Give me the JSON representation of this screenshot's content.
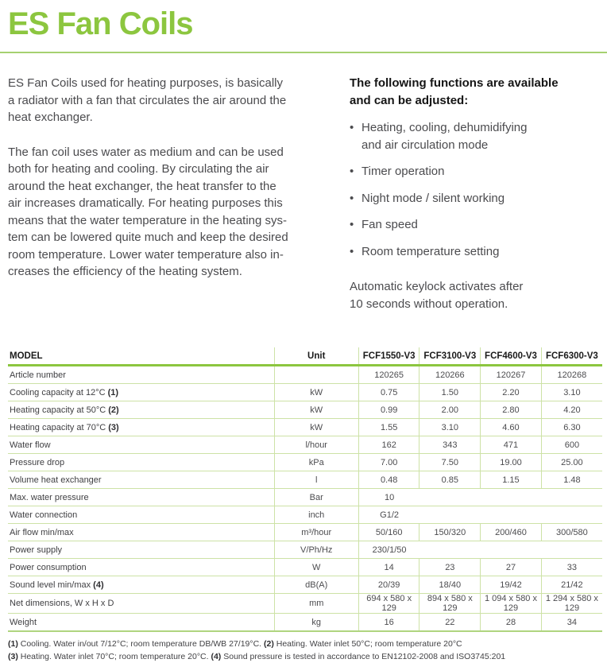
{
  "page": {
    "title": "ES Fan Coils",
    "intro_paragraphs": [
      "ES Fan Coils used for heating purposes, is basically\na radiator with a fan that circulates the air around the\nheat exchanger.",
      "The fan coil uses water as medium and can be used\nboth for heating and cooling. By circulating the air\naround the heat exchanger, the heat transfer to the\nair increases dramatically. For heating purposes this\nmeans that the water temperature in the heating sys-\ntem can be lowered quite much and keep the desired\nroom temperature. Lower water temperature also in-\ncreases the efficiency of the heating system."
    ],
    "functions": {
      "heading": "The following functions are available\nand can be adjusted:",
      "items": [
        "Heating, cooling, dehumidifying\nand air circulation mode",
        "Timer operation",
        "Night mode / silent working",
        "Fan speed",
        "Room temperature setting"
      ],
      "note": "Automatic keylock activates after\n10 seconds without operation."
    },
    "colors": {
      "accent_green": "#8CC63F",
      "table_line_green": "#CDE2A6",
      "body_text": "#4B4B4E"
    }
  },
  "table": {
    "columns": [
      "MODEL",
      "Unit",
      "FCF1550-V3",
      "FCF3100-V3",
      "FCF4600-V3",
      "FCF6300-V3"
    ],
    "rows": [
      {
        "label": "Article number",
        "ref": "",
        "unit": "",
        "values": [
          "120265",
          "120266",
          "120267",
          "120268"
        ]
      },
      {
        "label": "Cooling capacity at 12°C",
        "ref": "(1)",
        "unit": "kW",
        "values": [
          "0.75",
          "1.50",
          "2.20",
          "3.10"
        ]
      },
      {
        "label": "Heating capacity at 50°C",
        "ref": "(2)",
        "unit": "kW",
        "values": [
          "0.99",
          "2.00",
          "2.80",
          "4.20"
        ]
      },
      {
        "label": "Heating capacity at 70°C",
        "ref": "(3)",
        "unit": "kW",
        "values": [
          "1.55",
          "3.10",
          "4.60",
          "6.30"
        ]
      },
      {
        "label": "Water flow",
        "ref": "",
        "unit": "l/hour",
        "values": [
          "162",
          "343",
          "471",
          "600"
        ]
      },
      {
        "label": "Pressure drop",
        "ref": "",
        "unit": "kPa",
        "values": [
          "7.00",
          "7.50",
          "19.00",
          "25.00"
        ]
      },
      {
        "label": "Volume heat exchanger",
        "ref": "",
        "unit": "l",
        "values": [
          "0.48",
          "0.85",
          "1.15",
          "1.48"
        ]
      },
      {
        "label": "Max. water pressure",
        "ref": "",
        "unit": "Bar",
        "span": "10"
      },
      {
        "label": "Water connection",
        "ref": "",
        "unit": "inch",
        "span": "G1/2"
      },
      {
        "label": "Air flow min/max",
        "ref": "",
        "unit": "m³/hour",
        "values": [
          "50/160",
          "150/320",
          "200/460",
          "300/580"
        ]
      },
      {
        "label": "Power supply",
        "ref": "",
        "unit": "V/Ph/Hz",
        "span": "230/1/50"
      },
      {
        "label": "Power consumption",
        "ref": "",
        "unit": "W",
        "values": [
          "14",
          "23",
          "27",
          "33"
        ]
      },
      {
        "label": "Sound level min/max",
        "ref": "(4)",
        "unit": "dB(A)",
        "values": [
          "20/39",
          "18/40",
          "19/42",
          "21/42"
        ]
      },
      {
        "label": "Net dimensions, W x H x D",
        "ref": "",
        "unit": "mm",
        "values": [
          "694 x 580 x 129",
          "894 x 580 x 129",
          "1 094 x 580 x 129",
          "1 294 x 580 x 129"
        ]
      },
      {
        "label": "Weight",
        "ref": "",
        "unit": "kg",
        "values": [
          "16",
          "22",
          "28",
          "34"
        ]
      }
    ],
    "footnotes": [
      [
        {
          "b": "(1)"
        },
        {
          "t": " Cooling.  Water in/out 7/12°C; room temperature DB/WB 27/19°C.  "
        },
        {
          "b": "(2)"
        },
        {
          "t": " Heating.  Water inlet 50°C; room temperature 20°C"
        }
      ],
      [
        {
          "b": "(3)"
        },
        {
          "t": " Heating.  Water inlet 70°C; room temperature 20°C.  "
        },
        {
          "b": "(4)"
        },
        {
          "t": " Sound pressure is tested in accordance to EN12102-2008 and ISO3745:201"
        }
      ]
    ]
  }
}
